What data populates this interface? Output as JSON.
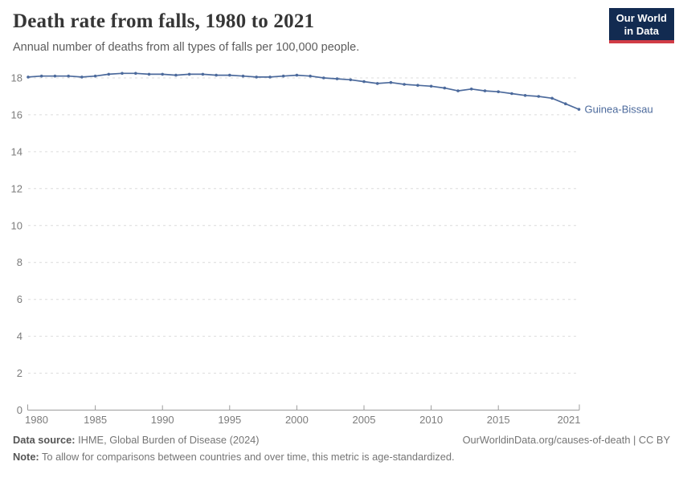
{
  "header": {
    "title": "Death rate from falls, 1980 to 2021",
    "subtitle": "Annual number of deaths from all types of falls per 100,000 people.",
    "logo": {
      "line1": "Our World",
      "line2": "in Data"
    }
  },
  "chart_data": {
    "type": "line",
    "title": "Death rate from falls, 1980 to 2021",
    "x": [
      1980,
      1981,
      1982,
      1983,
      1984,
      1985,
      1986,
      1987,
      1988,
      1989,
      1990,
      1991,
      1992,
      1993,
      1994,
      1995,
      1996,
      1997,
      1998,
      1999,
      2000,
      2001,
      2002,
      2003,
      2004,
      2005,
      2006,
      2007,
      2008,
      2009,
      2010,
      2011,
      2012,
      2013,
      2014,
      2015,
      2016,
      2017,
      2018,
      2019,
      2020,
      2021
    ],
    "series": [
      {
        "name": "Guinea-Bissau",
        "color": "#4C6A9C",
        "values": [
          18.05,
          18.1,
          18.1,
          18.1,
          18.05,
          18.1,
          18.2,
          18.25,
          18.25,
          18.2,
          18.2,
          18.15,
          18.2,
          18.2,
          18.15,
          18.15,
          18.1,
          18.05,
          18.05,
          18.1,
          18.15,
          18.1,
          18.0,
          17.95,
          17.9,
          17.8,
          17.7,
          17.75,
          17.65,
          17.6,
          17.55,
          17.45,
          17.3,
          17.4,
          17.3,
          17.25,
          17.15,
          17.05,
          17.0,
          16.9,
          16.6,
          16.3
        ]
      }
    ],
    "xticks": [
      1980,
      1985,
      1990,
      1995,
      2000,
      2005,
      2010,
      2015,
      2021
    ],
    "yticks": [
      0,
      2,
      4,
      6,
      8,
      10,
      12,
      14,
      16,
      18
    ],
    "xlim": [
      1980,
      2021
    ],
    "ylim": [
      0,
      18.6
    ],
    "grid": "horizontal-dashed",
    "legend_position": "end-of-line",
    "end_label": "Guinea-Bissau"
  },
  "footer": {
    "source_label": "Data source:",
    "source_text": " IHME, Global Burden of Disease (2024)",
    "note_label": "Note:",
    "note_text": " To allow for comparisons between countries and over time, this metric is age-standardized.",
    "link": "OurWorldinData.org/causes-of-death | CC BY"
  },
  "colors": {
    "line": "#4C6A9C",
    "grid": "#dcdcdc",
    "axis": "#9c9c9c",
    "tick_label": "#7c7c7c",
    "title": "#363636",
    "subtitle": "#5c5c5c",
    "logo_bg": "#122b51",
    "logo_accent": "#d13c46"
  }
}
